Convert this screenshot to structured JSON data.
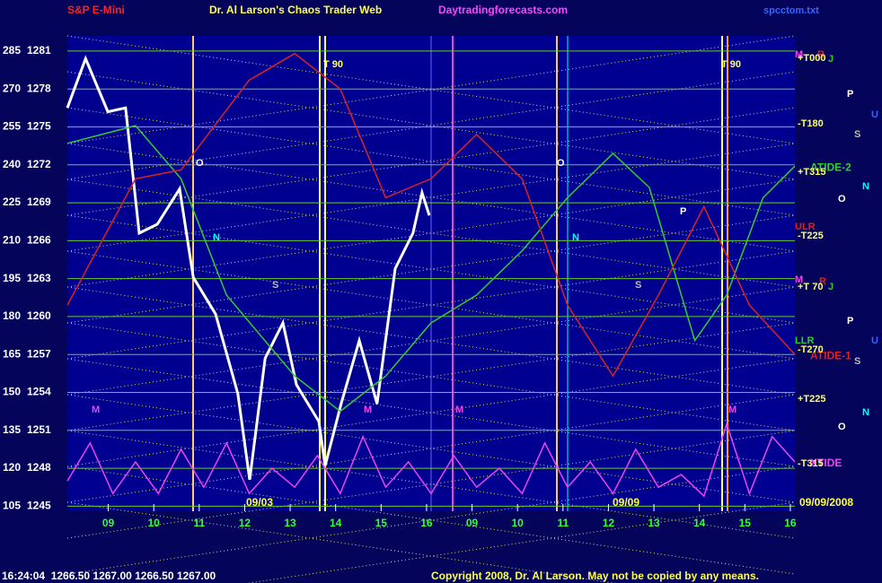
{
  "chart_data": {
    "type": "line",
    "title": "Dr. Al Larson's Chaos Trader Web",
    "symbol": "S&P E-Mini",
    "website": "Daytradingforecasts.com",
    "file": "spcctom.txt",
    "date_labels": [
      "09/03",
      "09/09"
    ],
    "end_date": "09/09/2008",
    "status": "16:24:04  1266.50 1267.00 1266.50 1267.00",
    "copyright": "Copyright 2008, Dr. Al Larson. May not be copied by any means.",
    "xlim": [
      0,
      16
    ],
    "xticks": [
      {
        "value": 0.9,
        "label": "09"
      },
      {
        "value": 1.9,
        "label": "10"
      },
      {
        "value": 2.9,
        "label": "11"
      },
      {
        "value": 3.9,
        "label": "12"
      },
      {
        "value": 4.9,
        "label": "13"
      },
      {
        "value": 5.9,
        "label": "14"
      },
      {
        "value": 6.9,
        "label": "15"
      },
      {
        "value": 7.9,
        "label": "16"
      },
      {
        "value": 8.9,
        "label": "09"
      },
      {
        "value": 9.9,
        "label": "10"
      },
      {
        "value": 10.9,
        "label": "11"
      },
      {
        "value": 11.9,
        "label": "12"
      },
      {
        "value": 12.9,
        "label": "13"
      },
      {
        "value": 13.9,
        "label": "14"
      },
      {
        "value": 14.9,
        "label": "15"
      },
      {
        "value": 15.9,
        "label": "16"
      }
    ],
    "ylim": [
      1244.6,
      1282.2
    ],
    "yticks": [
      1245,
      1248,
      1251,
      1254,
      1257,
      1260,
      1263,
      1266,
      1269,
      1272,
      1275,
      1278,
      1281
    ],
    "y2lim": [
      103,
      291
    ],
    "y2ticks": [
      105,
      120,
      135,
      150,
      165,
      180,
      195,
      210,
      225,
      240,
      255,
      270,
      285
    ],
    "grid": true,
    "series": [
      {
        "color": "#ffffff",
        "x": [
          0,
          0.4,
          0.89,
          1.28,
          1.58,
          1.98,
          2.47,
          2.77,
          3.26,
          3.75,
          4.01,
          4.35,
          4.74,
          5.04,
          5.53,
          5.67,
          6.02,
          6.42,
          6.81,
          7.21,
          7.6,
          7.8,
          7.96
        ],
        "values": [
          1276.5,
          1280.4,
          1276.2,
          1276.5,
          1266.6,
          1267.3,
          1270.1,
          1263.1,
          1260.2,
          1253.9,
          1247.1,
          1256.7,
          1259.5,
          1254.6,
          1251.7,
          1248.2,
          1253.1,
          1258.1,
          1253.1,
          1263.8,
          1266.6,
          1269.8,
          1268.0
        ]
      },
      {
        "name": "ATIDE-2",
        "color": "#33cc33",
        "x": [
          0,
          1.5,
          2.5,
          3.5,
          5,
          6,
          7,
          8,
          9,
          10,
          11,
          12,
          12.8,
          13.8,
          14.5,
          15.3,
          16
        ],
        "values": [
          1273.7,
          1275.1,
          1270.9,
          1261.7,
          1255.3,
          1252.5,
          1255.3,
          1259.5,
          1261.7,
          1265.2,
          1269.4,
          1272.9,
          1270.2,
          1258.1,
          1261.7,
          1269.4,
          1271.9
        ]
      },
      {
        "name": "ATIDE-1",
        "color": "#dd2222",
        "x": [
          0,
          1.5,
          2.5,
          4,
          5,
          6,
          7,
          8,
          9,
          10,
          11,
          12,
          13,
          14,
          15,
          16
        ],
        "values": [
          1260.9,
          1270.9,
          1271.6,
          1278.7,
          1280.8,
          1278.0,
          1269.4,
          1270.9,
          1274.4,
          1270.9,
          1260.9,
          1255.3,
          1261.7,
          1268.7,
          1260.9,
          1257.0
        ]
      },
      {
        "name": "XTIDE",
        "color": "#ee44ee",
        "x": [
          0,
          0.5,
          1,
          1.5,
          2,
          2.5,
          3,
          3.5,
          4,
          4.5,
          5,
          5.5,
          6,
          6.5,
          7,
          7.5,
          8,
          8.5,
          9,
          9.5,
          10,
          10.5,
          11,
          11.5,
          12,
          12.5,
          13,
          13.5,
          14,
          14.5,
          15,
          15.5,
          16
        ],
        "values": [
          1247,
          1250,
          1246,
          1248.5,
          1246,
          1249.5,
          1246.5,
          1250,
          1246,
          1248,
          1246.5,
          1249,
          1246,
          1250.5,
          1246.5,
          1248.5,
          1246,
          1249,
          1246.5,
          1248,
          1246,
          1250,
          1246.5,
          1248.5,
          1246,
          1249.5,
          1246.5,
          1247.5,
          1245.8,
          1251.5,
          1246,
          1250.5,
          1248.5
        ]
      }
    ],
    "annotations": [
      {
        "text": "T 90",
        "color": "#ffff66"
      },
      {
        "text": "T 90",
        "color": "#ffff66"
      },
      {
        "text": "O",
        "color": "#ffffff"
      },
      {
        "text": "O",
        "color": "#ffffff"
      },
      {
        "text": "N",
        "color": "#00ffff"
      },
      {
        "text": "N",
        "color": "#00ffff"
      },
      {
        "text": "S",
        "color": "#bbbbbb"
      },
      {
        "text": "S",
        "color": "#bbbbbb"
      },
      {
        "text": "M",
        "color": "#ee44ee"
      },
      {
        "text": "M",
        "color": "#ee44ee"
      },
      {
        "text": "M",
        "color": "#ee44ee"
      },
      {
        "text": "M",
        "color": "#ee44ee"
      },
      {
        "text": "P",
        "color": "#ffffff"
      },
      {
        "text": "M",
        "color": "#ee44ee"
      },
      {
        "text": "R",
        "color": "#dd2222"
      },
      {
        "text": "J",
        "color": "#33cc33"
      },
      {
        "text": "+T000",
        "color": "#ffff66"
      },
      {
        "text": "P",
        "color": "#ffffff"
      },
      {
        "text": "U",
        "color": "#3366ff"
      },
      {
        "text": "-T180",
        "color": "#ffff66"
      },
      {
        "text": "S",
        "color": "#bbbbbb"
      },
      {
        "text": "+T315",
        "color": "#ffff66"
      },
      {
        "text": "N",
        "color": "#00ffff"
      },
      {
        "text": "O",
        "color": "#ffffff"
      },
      {
        "text": "ULR",
        "color": "#dd2222"
      },
      {
        "text": "-T225",
        "color": "#ffff66"
      },
      {
        "text": "M",
        "color": "#ee44ee"
      },
      {
        "text": "R",
        "color": "#dd2222"
      },
      {
        "text": "J",
        "color": "#33cc33"
      },
      {
        "text": "+T 70",
        "color": "#ffff66"
      },
      {
        "text": "P",
        "color": "#ffffff"
      },
      {
        "text": "U",
        "color": "#3366ff"
      },
      {
        "text": "LLR",
        "color": "#33cc33"
      },
      {
        "text": "-T270",
        "color": "#ffff66"
      },
      {
        "text": "S",
        "color": "#bbbbbb"
      },
      {
        "text": "+T225",
        "color": "#ffff66"
      },
      {
        "text": "N",
        "color": "#00ffff"
      },
      {
        "text": "O",
        "color": "#ffffff"
      },
      {
        "text": "-T315",
        "color": "#ffff66"
      }
    ]
  }
}
